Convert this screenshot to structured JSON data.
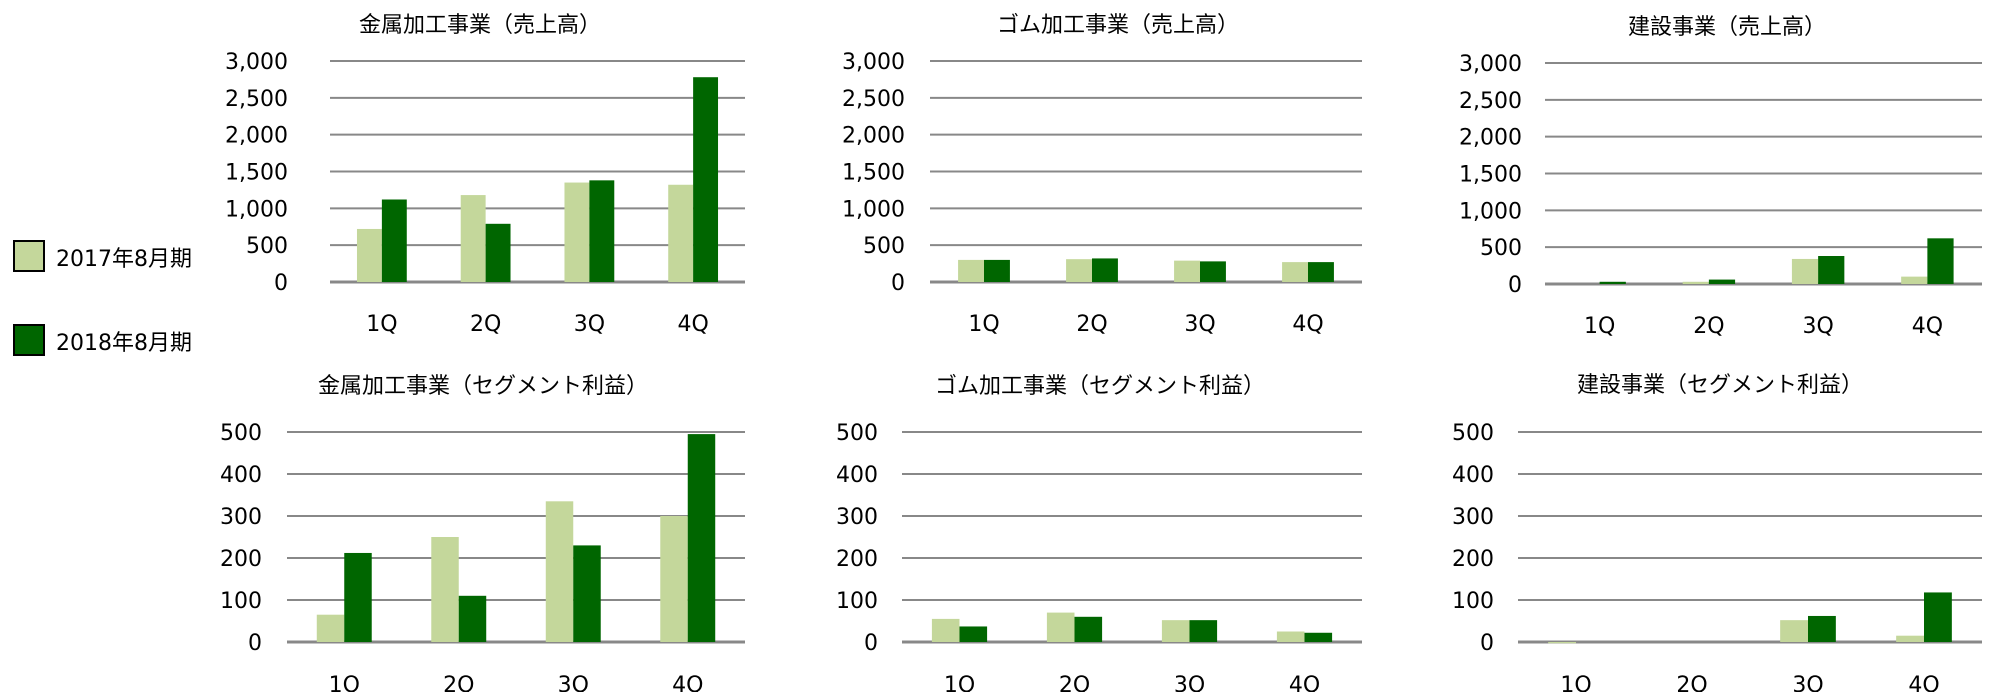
{
  "legend": {
    "items": [
      {
        "label": "2017年8月期",
        "color": "#c4d79b"
      },
      {
        "label": "2018年8月期",
        "color": "#006600"
      }
    ]
  },
  "colors": {
    "grid": "#888888",
    "axis": "#888888",
    "legend_border": "#000000"
  },
  "chart_data": [
    {
      "type": "bar",
      "title": "金属加工事業（売上高）",
      "categories": [
        "1Q",
        "2Q",
        "3Q",
        "4Q"
      ],
      "ylim": [
        0,
        3000
      ],
      "yticks": [
        0,
        500,
        1000,
        1500,
        2000,
        2500,
        3000
      ],
      "ytick_labels": [
        "0",
        "500",
        "1,000",
        "1,500",
        "2,000",
        "2,500",
        "3,000"
      ],
      "grid": true,
      "series": [
        {
          "name": "2017年8月期",
          "values": [
            720,
            1180,
            1350,
            1320
          ]
        },
        {
          "name": "2018年8月期",
          "values": [
            1120,
            790,
            1380,
            2780
          ]
        }
      ]
    },
    {
      "type": "bar",
      "title": "ゴム加工事業（売上高）",
      "categories": [
        "1Q",
        "2Q",
        "3Q",
        "4Q"
      ],
      "ylim": [
        0,
        3000
      ],
      "yticks": [
        0,
        500,
        1000,
        1500,
        2000,
        2500,
        3000
      ],
      "ytick_labels": [
        "0",
        "500",
        "1,000",
        "1,500",
        "2,000",
        "2,500",
        "3,000"
      ],
      "grid": true,
      "series": [
        {
          "name": "2017年8月期",
          "values": [
            300,
            310,
            290,
            270
          ]
        },
        {
          "name": "2018年8月期",
          "values": [
            300,
            320,
            280,
            270
          ]
        }
      ]
    },
    {
      "type": "bar",
      "title": "建設事業（売上高）",
      "categories": [
        "1Q",
        "2Q",
        "3Q",
        "4Q"
      ],
      "ylim": [
        0,
        3000
      ],
      "yticks": [
        0,
        500,
        1000,
        1500,
        2000,
        2500,
        3000
      ],
      "ytick_labels": [
        "0",
        "500",
        "1,000",
        "1,500",
        "2,000",
        "2,500",
        "3,000"
      ],
      "grid": true,
      "series": [
        {
          "name": "2017年8月期",
          "values": [
            0,
            30,
            340,
            100
          ]
        },
        {
          "name": "2018年8月期",
          "values": [
            30,
            60,
            380,
            620
          ]
        }
      ]
    },
    {
      "type": "bar",
      "title": "金属加工事業（セグメント利益）",
      "categories": [
        "1Q",
        "2Q",
        "3Q",
        "4Q"
      ],
      "ylim": [
        0,
        500
      ],
      "yticks": [
        0,
        100,
        200,
        300,
        400,
        500
      ],
      "ytick_labels": [
        "0",
        "100",
        "200",
        "300",
        "400",
        "500"
      ],
      "grid": true,
      "series": [
        {
          "name": "2017年8月期",
          "values": [
            65,
            250,
            335,
            300
          ]
        },
        {
          "name": "2018年8月期",
          "values": [
            212,
            110,
            230,
            495
          ]
        }
      ]
    },
    {
      "type": "bar",
      "title": "ゴム加工事業（セグメント利益）",
      "categories": [
        "1Q",
        "2Q",
        "3Q",
        "4Q"
      ],
      "ylim": [
        0,
        500
      ],
      "yticks": [
        0,
        100,
        200,
        300,
        400,
        500
      ],
      "ytick_labels": [
        "0",
        "100",
        "200",
        "300",
        "400",
        "500"
      ],
      "grid": true,
      "series": [
        {
          "name": "2017年8月期",
          "values": [
            55,
            70,
            52,
            25
          ]
        },
        {
          "name": "2018年8月期",
          "values": [
            37,
            60,
            52,
            22
          ]
        }
      ]
    },
    {
      "type": "bar",
      "title": "建設事業（セグメント利益）",
      "categories": [
        "1Q",
        "2Q",
        "3Q",
        "4Q"
      ],
      "ylim": [
        0,
        500
      ],
      "yticks": [
        0,
        100,
        200,
        300,
        400,
        500
      ],
      "ytick_labels": [
        "0",
        "100",
        "200",
        "300",
        "400",
        "500"
      ],
      "grid": true,
      "series": [
        {
          "name": "2017年8月期",
          "values": [
            -3,
            0,
            52,
            15
          ]
        },
        {
          "name": "2018年8月期",
          "values": [
            0,
            0,
            62,
            118
          ]
        }
      ]
    }
  ]
}
